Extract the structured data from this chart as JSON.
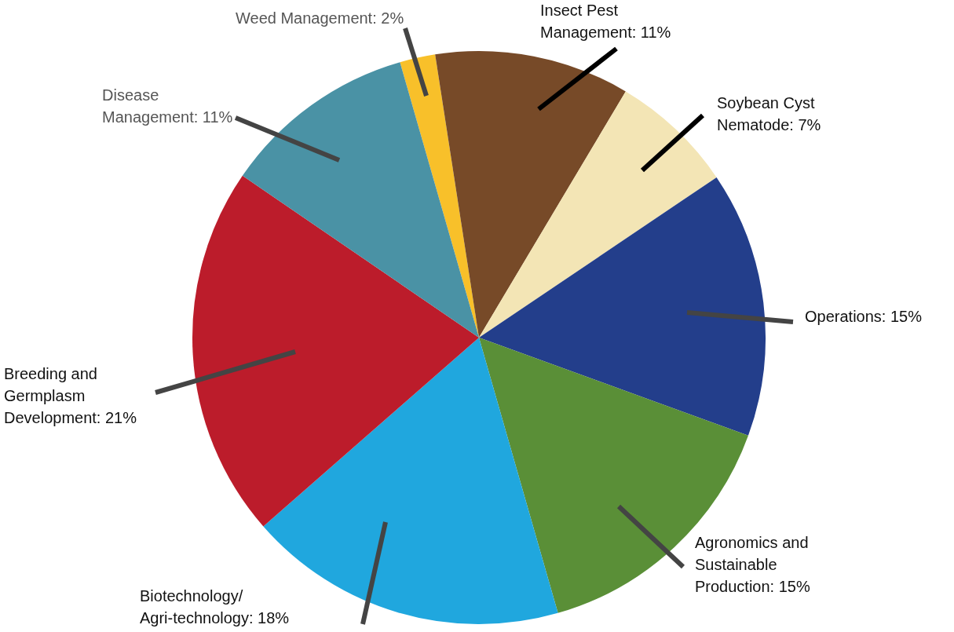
{
  "chart_data": {
    "type": "pie",
    "categories": [
      "Weed Management",
      "Insect Pest Management",
      "Soybean Cyst Nematode",
      "Operations",
      "Agronomics and Sustainable Production",
      "Biotechnology/ Agri-technology",
      "Breeding and Germplasm Development",
      "Disease Management"
    ],
    "values": [
      2,
      11,
      7,
      15,
      15,
      18,
      21,
      11
    ],
    "value_labels": [
      "2%",
      "11%",
      "7%",
      "15%",
      "15%",
      "18%",
      "21%",
      "11%"
    ],
    "colors": [
      "#f8c02a",
      "#774a28",
      "#f3e5b5",
      "#233e8b",
      "#5a8f37",
      "#20a7de",
      "#bc1c2b",
      "#4a92a5"
    ],
    "legend": false
  }
}
